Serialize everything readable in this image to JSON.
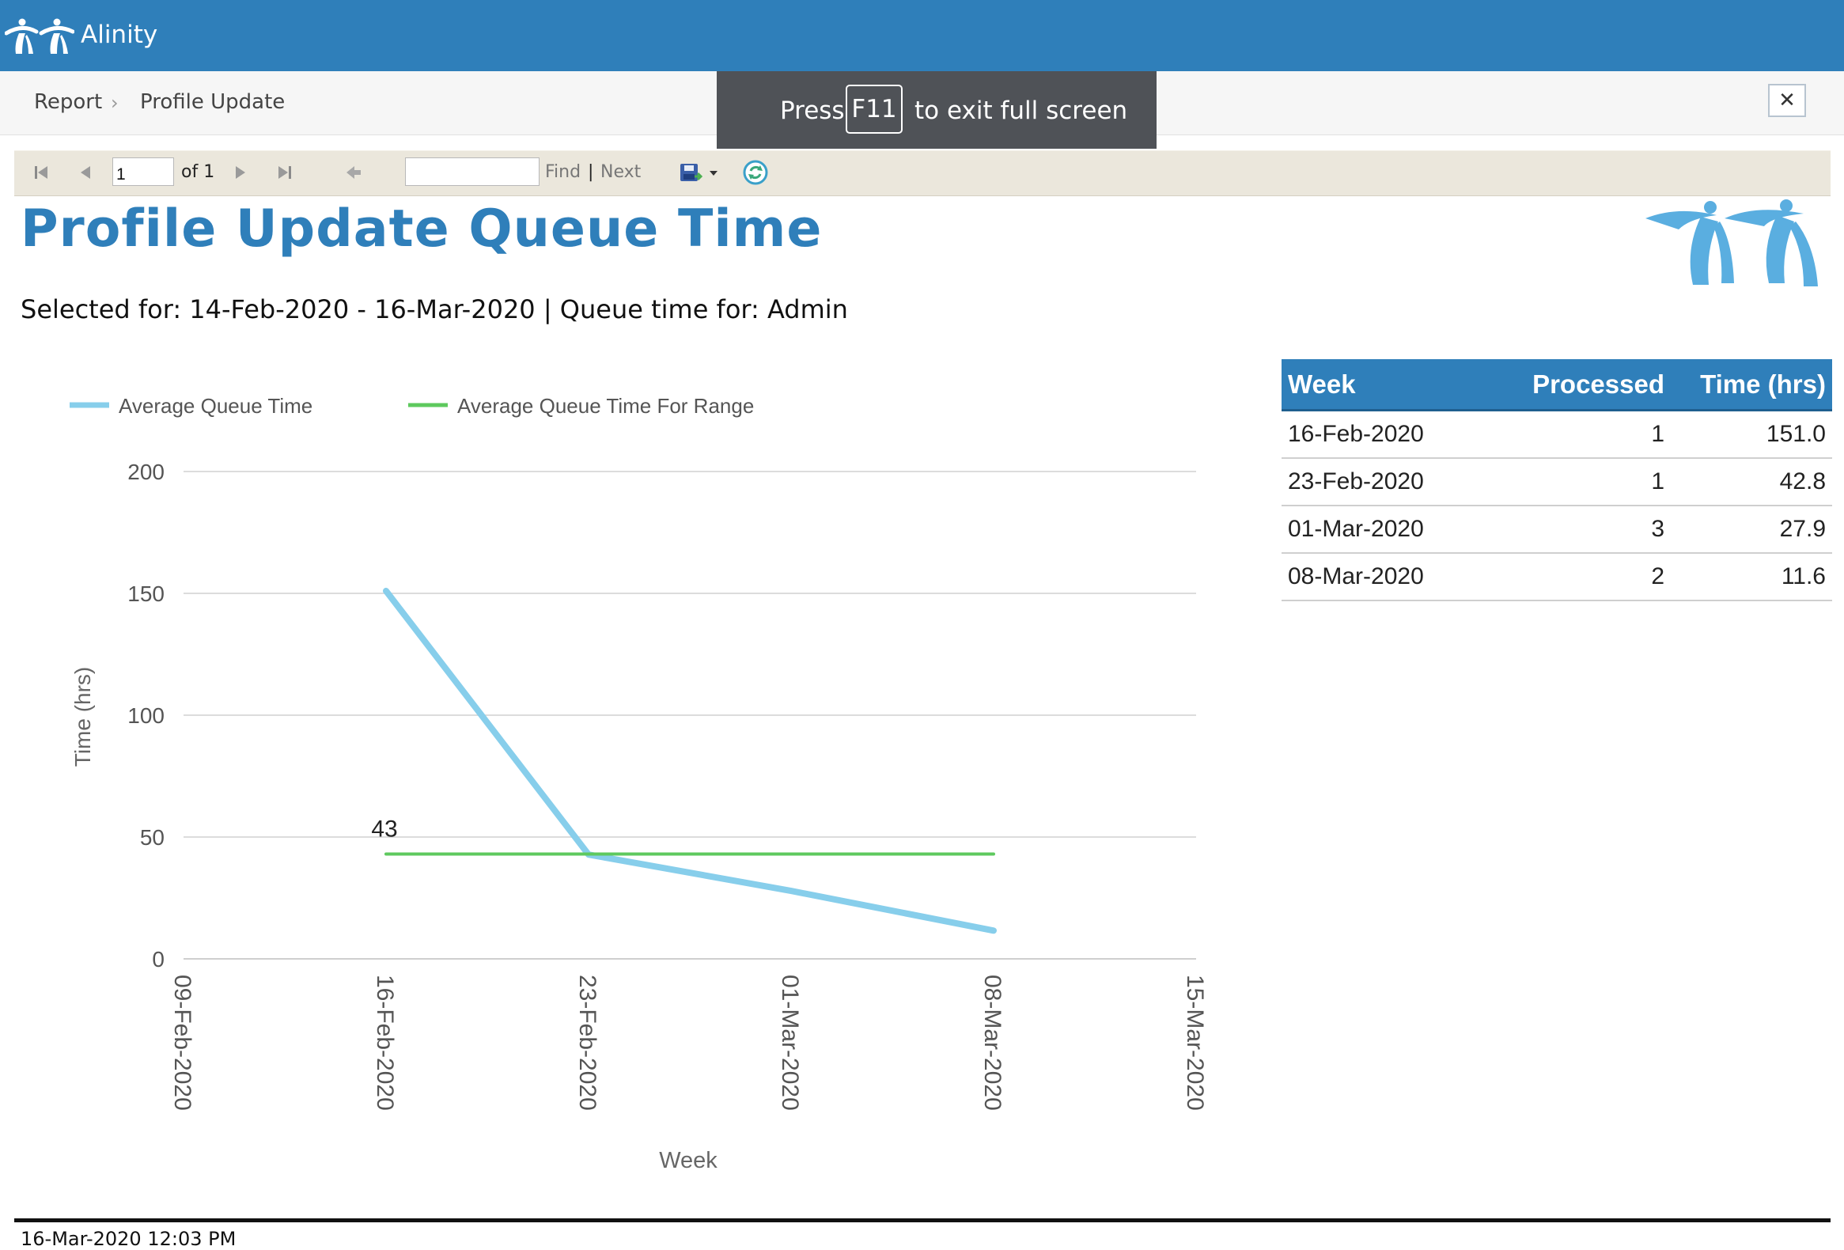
{
  "app": {
    "name": "Alinity",
    "logo_icon": "alinity-logo-icon"
  },
  "breadcrumb": {
    "items": [
      "Report",
      "Profile Update"
    ],
    "separator": "›"
  },
  "fullscreen_hint": {
    "press": "Press",
    "key": "F11",
    "rest": "to exit full screen"
  },
  "close_button": {
    "label": "✕"
  },
  "toolbar": {
    "page_value": "1",
    "of_label": "of 1",
    "find_value": "",
    "find_label": "Find",
    "divider": "|",
    "next_label": "Next",
    "icons": [
      "first-page-icon",
      "previous-page-icon",
      "next-page-icon",
      "last-page-icon",
      "back-to-parent-icon",
      "export-save-icon",
      "export-dropdown-icon",
      "refresh-icon"
    ]
  },
  "report": {
    "title": "Profile Update Queue Time",
    "subtitle": "Selected for: 14-Feb-2020 - 16-Mar-2020 | Queue time for: Admin"
  },
  "table": {
    "headers": [
      "Week",
      "Processed",
      "Time (hrs)"
    ],
    "rows": [
      [
        "16-Feb-2020",
        "1",
        "151.0"
      ],
      [
        "23-Feb-2020",
        "1",
        "42.8"
      ],
      [
        "01-Mar-2020",
        "3",
        "27.9"
      ],
      [
        "08-Mar-2020",
        "2",
        "11.6"
      ]
    ]
  },
  "chart_data": {
    "type": "line",
    "x": [
      "09-Feb-2020",
      "16-Feb-2020",
      "23-Feb-2020",
      "01-Mar-2020",
      "08-Mar-2020",
      "15-Mar-2020"
    ],
    "series": [
      {
        "name": "Average Queue Time",
        "color": "#87ceeb",
        "x": [
          "16-Feb-2020",
          "23-Feb-2020",
          "01-Mar-2020",
          "08-Mar-2020"
        ],
        "values": [
          151.0,
          42.8,
          27.9,
          11.6
        ]
      },
      {
        "name": "Average Queue Time For Range",
        "color": "#5ec95e",
        "x": [
          "16-Feb-2020",
          "08-Mar-2020"
        ],
        "values": [
          43,
          43
        ]
      }
    ],
    "yticks": [
      0,
      50,
      100,
      150,
      200
    ],
    "ylim": [
      0,
      200
    ],
    "data_labels": [
      {
        "x": "16-Feb-2020",
        "y": 43,
        "text": "43"
      }
    ],
    "xlabel": "Week",
    "ylabel": "Time (hrs)",
    "legend": "top-left",
    "grid": true
  },
  "footer": {
    "timestamp": "16-Mar-2020 12:03 PM"
  }
}
